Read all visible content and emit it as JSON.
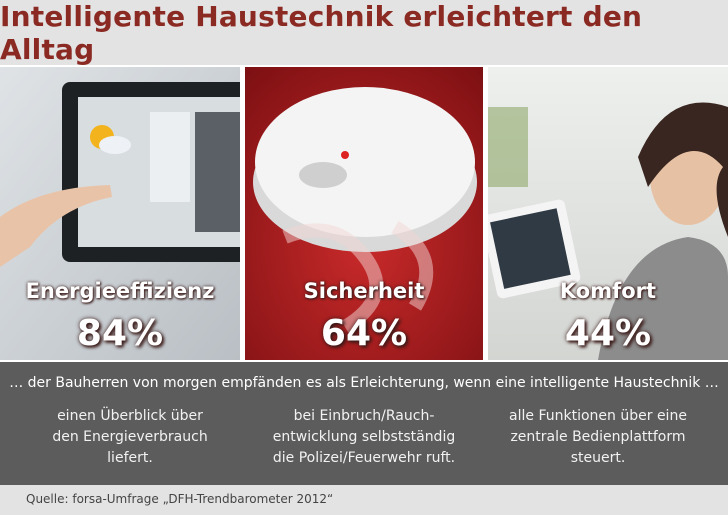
{
  "header": {
    "title": "Intelligente Haustechnik erleichtert den Alltag"
  },
  "panels": [
    {
      "label": "Energieeffizienz",
      "percent": "84%"
    },
    {
      "label": "Sicherheit",
      "percent": "64%"
    },
    {
      "label": "Komfort",
      "percent": "44%"
    }
  ],
  "intro": "… der Bauherren von morgen empfänden es als Erleichterung, wenn eine intelligente Haustechnik …",
  "statements": [
    [
      "einen Überblick über",
      "den Energieverbrauch",
      "liefert."
    ],
    [
      "bei Einbruch/Rauch-",
      "entwicklung selbstständig",
      "die Polizei/Feuerwehr ruft."
    ],
    [
      "alle Funktionen über eine",
      "zentrale Bedienplattform",
      "steuert."
    ]
  ],
  "source": "Quelle: forsa-Umfrage „DFH-Trendbarometer 2012“"
}
